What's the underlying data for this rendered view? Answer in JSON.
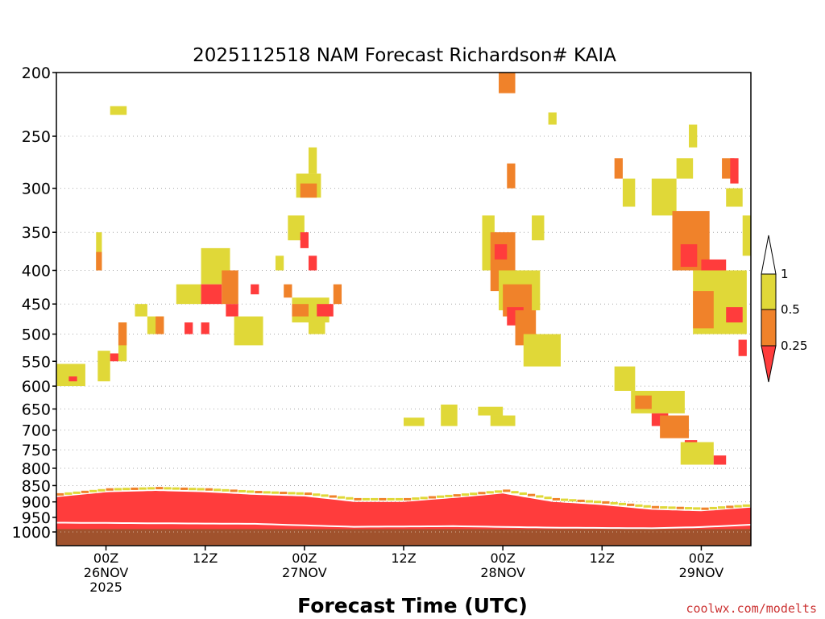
{
  "chart_data": {
    "type": "heatmap",
    "title": "2025112518 NAM Forecast Richardson# KAIA",
    "xlabel": "Forecast Time (UTC)",
    "ylabel": "",
    "credit": "coolwx.com/modelts",
    "y_axis": {
      "scale": "log-pressure",
      "range_hpa": [
        1000,
        200
      ],
      "ticks": [
        200,
        250,
        300,
        350,
        400,
        450,
        500,
        550,
        600,
        650,
        700,
        750,
        800,
        850,
        900,
        950,
        1000
      ],
      "tick_labels": [
        "200",
        "250",
        "300",
        "350",
        "400",
        "450",
        "500",
        "550",
        "600",
        "650",
        "700",
        "750",
        "800",
        "850",
        "900",
        "950",
        "1000"
      ],
      "gridlines": true
    },
    "x_axis": {
      "range_forecast_hours": [
        0,
        84
      ],
      "ticks": [
        {
          "hour": 6,
          "line1": "00Z",
          "line2": "26NOV",
          "line3": "2025"
        },
        {
          "hour": 18,
          "line1": "12Z",
          "line2": "",
          "line3": ""
        },
        {
          "hour": 30,
          "line1": "00Z",
          "line2": "27NOV",
          "line3": ""
        },
        {
          "hour": 42,
          "line1": "12Z",
          "line2": "",
          "line3": ""
        },
        {
          "hour": 54,
          "line1": "00Z",
          "line2": "28NOV",
          "line3": ""
        },
        {
          "hour": 66,
          "line1": "12Z",
          "line2": "",
          "line3": ""
        },
        {
          "hour": 78,
          "line1": "00Z",
          "line2": "29NOV",
          "line3": ""
        }
      ]
    },
    "colorbar": {
      "labels": [
        "1",
        "0.5",
        "0.25"
      ],
      "bins": [
        {
          "label": "0.5 - 1",
          "color": "#e0d838"
        },
        {
          "label": "0.25 - 0.5",
          "color": "#f0822a"
        },
        {
          "label": "< 0.25",
          "color": "#ff3c3c"
        }
      ],
      "over_color": "#ffffff",
      "under_color": "#ff3c3c"
    },
    "below_ground": {
      "pressure_hpa": 990,
      "color": "#a0522d"
    },
    "surface_line_hpa": [
      [
        0,
        968
      ],
      [
        12,
        970
      ],
      [
        24,
        972
      ],
      [
        36,
        982
      ],
      [
        48,
        980
      ],
      [
        60,
        985
      ],
      [
        72,
        987
      ],
      [
        78,
        983
      ],
      [
        84,
        975
      ]
    ],
    "low_layer": {
      "description": "Ri < 0.25 band near the surface",
      "top_hpa": [
        [
          0,
          885
        ],
        [
          6,
          870
        ],
        [
          12,
          866
        ],
        [
          18,
          870
        ],
        [
          24,
          878
        ],
        [
          30,
          883
        ],
        [
          36,
          900
        ],
        [
          42,
          900
        ],
        [
          48,
          888
        ],
        [
          54,
          874
        ],
        [
          60,
          900
        ],
        [
          66,
          910
        ],
        [
          72,
          925
        ],
        [
          78,
          930
        ],
        [
          84,
          918
        ]
      ]
    },
    "patches": [
      {
        "color": "#e0d838",
        "x": [
          0,
          3.5
        ],
        "p": [
          555,
          600
        ]
      },
      {
        "color": "#ff3c3c",
        "x": [
          1.5,
          2.5
        ],
        "p": [
          580,
          590
        ]
      },
      {
        "color": "#e0d838",
        "x": [
          4.8,
          5.5
        ],
        "p": [
          350,
          400
        ]
      },
      {
        "color": "#f0822a",
        "x": [
          4.8,
          5.5
        ],
        "p": [
          375,
          400
        ]
      },
      {
        "color": "#e0d838",
        "x": [
          6.5,
          8.5
        ],
        "p": [
          225,
          232
        ]
      },
      {
        "color": "#e0d838",
        "x": [
          5,
          6.5
        ],
        "p": [
          530,
          590
        ]
      },
      {
        "color": "#ff3c3c",
        "x": [
          6.5,
          7.5
        ],
        "p": [
          535,
          550
        ]
      },
      {
        "color": "#e0d838",
        "x": [
          7.5,
          8.5
        ],
        "p": [
          480,
          550
        ]
      },
      {
        "color": "#f0822a",
        "x": [
          7.5,
          8.5
        ],
        "p": [
          480,
          520
        ]
      },
      {
        "color": "#e0d838",
        "x": [
          9.5,
          11
        ],
        "p": [
          450,
          470
        ]
      },
      {
        "color": "#e0d838",
        "x": [
          11,
          13
        ],
        "p": [
          470,
          500
        ]
      },
      {
        "color": "#f0822a",
        "x": [
          12,
          13
        ],
        "p": [
          470,
          500
        ]
      },
      {
        "color": "#e0d838",
        "x": [
          14.5,
          17.5
        ],
        "p": [
          420,
          450
        ]
      },
      {
        "color": "#ff3c3c",
        "x": [
          15.5,
          16.5
        ],
        "p": [
          480,
          500
        ]
      },
      {
        "color": "#ff3c3c",
        "x": [
          17.5,
          18.5
        ],
        "p": [
          480,
          500
        ]
      },
      {
        "color": "#e0d838",
        "x": [
          17.5,
          21
        ],
        "p": [
          370,
          420
        ]
      },
      {
        "color": "#ff3c3c",
        "x": [
          17.5,
          20
        ],
        "p": [
          420,
          450
        ]
      },
      {
        "color": "#f0822a",
        "x": [
          20,
          22
        ],
        "p": [
          400,
          450
        ]
      },
      {
        "color": "#ff3c3c",
        "x": [
          20.5,
          22
        ],
        "p": [
          450,
          470
        ]
      },
      {
        "color": "#e0d838",
        "x": [
          21.5,
          25
        ],
        "p": [
          470,
          520
        ]
      },
      {
        "color": "#ff3c3c",
        "x": [
          23.5,
          24.5
        ],
        "p": [
          420,
          435
        ]
      },
      {
        "color": "#e0d838",
        "x": [
          26.5,
          27.5
        ],
        "p": [
          380,
          400
        ]
      },
      {
        "color": "#e0d838",
        "x": [
          29,
          32
        ],
        "p": [
          285,
          310
        ]
      },
      {
        "color": "#f0822a",
        "x": [
          29.5,
          31.5
        ],
        "p": [
          295,
          310
        ]
      },
      {
        "color": "#e0d838",
        "x": [
          30.5,
          31.5
        ],
        "p": [
          260,
          285
        ]
      },
      {
        "color": "#e0d838",
        "x": [
          28,
          30
        ],
        "p": [
          330,
          360
        ]
      },
      {
        "color": "#ff3c3c",
        "x": [
          29.5,
          30.5
        ],
        "p": [
          350,
          370
        ]
      },
      {
        "color": "#ff3c3c",
        "x": [
          30.5,
          31.5
        ],
        "p": [
          380,
          400
        ]
      },
      {
        "color": "#f0822a",
        "x": [
          27.5,
          28.5
        ],
        "p": [
          420,
          440
        ]
      },
      {
        "color": "#e0d838",
        "x": [
          28.5,
          33
        ],
        "p": [
          440,
          480
        ]
      },
      {
        "color": "#f0822a",
        "x": [
          28.5,
          30.5
        ],
        "p": [
          450,
          470
        ]
      },
      {
        "color": "#ff3c3c",
        "x": [
          31.5,
          33.5
        ],
        "p": [
          450,
          470
        ]
      },
      {
        "color": "#f0822a",
        "x": [
          33.5,
          34.5
        ],
        "p": [
          420,
          450
        ]
      },
      {
        "color": "#e0d838",
        "x": [
          30.5,
          32.5
        ],
        "p": [
          470,
          500
        ]
      },
      {
        "color": "#f0822a",
        "x": [
          53.5,
          55.5
        ],
        "p": [
          200,
          215
        ]
      },
      {
        "color": "#f0822a",
        "x": [
          54.5,
          55.5
        ],
        "p": [
          275,
          300
        ]
      },
      {
        "color": "#e0d838",
        "x": [
          51.5,
          53
        ],
        "p": [
          330,
          400
        ]
      },
      {
        "color": "#f0822a",
        "x": [
          52.5,
          55.5
        ],
        "p": [
          350,
          430
        ]
      },
      {
        "color": "#ff3c3c",
        "x": [
          53,
          54.5
        ],
        "p": [
          365,
          385
        ]
      },
      {
        "color": "#e0d838",
        "x": [
          53.5,
          58.5
        ],
        "p": [
          400,
          460
        ]
      },
      {
        "color": "#f0822a",
        "x": [
          54,
          57.5
        ],
        "p": [
          420,
          470
        ]
      },
      {
        "color": "#ff3c3c",
        "x": [
          54.5,
          56.5
        ],
        "p": [
          455,
          485
        ]
      },
      {
        "color": "#f0822a",
        "x": [
          55.5,
          58
        ],
        "p": [
          460,
          520
        ]
      },
      {
        "color": "#e0d838",
        "x": [
          56.5,
          61
        ],
        "p": [
          500,
          560
        ]
      },
      {
        "color": "#e0d838",
        "x": [
          57.5,
          59
        ],
        "p": [
          330,
          360
        ]
      },
      {
        "color": "#e0d838",
        "x": [
          59.5,
          60.5
        ],
        "p": [
          230,
          240
        ]
      },
      {
        "color": "#e0d838",
        "x": [
          42,
          44.5
        ],
        "p": [
          670,
          690
        ]
      },
      {
        "color": "#e0d838",
        "x": [
          46.5,
          48.5
        ],
        "p": [
          640,
          690
        ]
      },
      {
        "color": "#e0d838",
        "x": [
          51,
          54
        ],
        "p": [
          645,
          665
        ]
      },
      {
        "color": "#e0d838",
        "x": [
          52.5,
          55.5
        ],
        "p": [
          665,
          690
        ]
      },
      {
        "color": "#e0d838",
        "x": [
          67.5,
          70
        ],
        "p": [
          560,
          610
        ]
      },
      {
        "color": "#e0d838",
        "x": [
          69.5,
          76
        ],
        "p": [
          610,
          660
        ]
      },
      {
        "color": "#f0822a",
        "x": [
          70,
          72
        ],
        "p": [
          620,
          650
        ]
      },
      {
        "color": "#ff3c3c",
        "x": [
          72,
          74
        ],
        "p": [
          660,
          690
        ]
      },
      {
        "color": "#f0822a",
        "x": [
          73,
          76.5
        ],
        "p": [
          665,
          720
        ]
      },
      {
        "color": "#ff3c3c",
        "x": [
          76,
          77.5
        ],
        "p": [
          725,
          750
        ]
      },
      {
        "color": "#e0d838",
        "x": [
          75.5,
          79.5
        ],
        "p": [
          730,
          790
        ]
      },
      {
        "color": "#ff3c3c",
        "x": [
          79.5,
          81
        ],
        "p": [
          765,
          790
        ]
      },
      {
        "color": "#e0d838",
        "x": [
          72,
          75
        ],
        "p": [
          290,
          330
        ]
      },
      {
        "color": "#f0822a",
        "x": [
          74.5,
          79
        ],
        "p": [
          325,
          400
        ]
      },
      {
        "color": "#ff3c3c",
        "x": [
          75.5,
          77.5
        ],
        "p": [
          365,
          395
        ]
      },
      {
        "color": "#ff3c3c",
        "x": [
          78,
          81
        ],
        "p": [
          385,
          420
        ]
      },
      {
        "color": "#e0d838",
        "x": [
          77,
          83.5
        ],
        "p": [
          400,
          500
        ]
      },
      {
        "color": "#f0822a",
        "x": [
          77,
          79.5
        ],
        "p": [
          430,
          490
        ]
      },
      {
        "color": "#ff3c3c",
        "x": [
          81,
          83
        ],
        "p": [
          455,
          480
        ]
      },
      {
        "color": "#ff3c3c",
        "x": [
          82.5,
          83.5
        ],
        "p": [
          510,
          540
        ]
      },
      {
        "color": "#f0822a",
        "x": [
          80.5,
          82
        ],
        "p": [
          270,
          290
        ]
      },
      {
        "color": "#ff3c3c",
        "x": [
          81.5,
          82.5
        ],
        "p": [
          270,
          295
        ]
      },
      {
        "color": "#e0d838",
        "x": [
          75,
          77
        ],
        "p": [
          270,
          290
        ]
      },
      {
        "color": "#e0d838",
        "x": [
          76.5,
          77.5
        ],
        "p": [
          240,
          260
        ]
      },
      {
        "color": "#f0822a",
        "x": [
          67.5,
          68.5
        ],
        "p": [
          270,
          290
        ]
      },
      {
        "color": "#e0d838",
        "x": [
          68.5,
          70
        ],
        "p": [
          290,
          320
        ]
      },
      {
        "color": "#e0d838",
        "x": [
          81,
          83
        ],
        "p": [
          300,
          320
        ]
      },
      {
        "color": "#e0d838",
        "x": [
          83,
          84
        ],
        "p": [
          330,
          380
        ]
      }
    ]
  }
}
